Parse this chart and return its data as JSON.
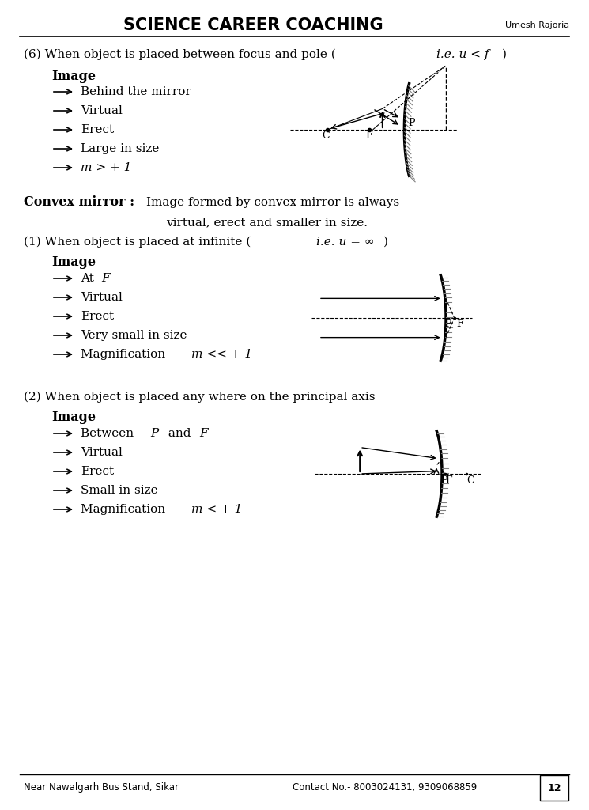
{
  "title": "SCIENCE CAREER COACHING",
  "title_right": "Umesh Rajoria",
  "footer_left": "Near Nawalgarh Bus Stand, Sikar",
  "footer_right": "Contact No.- 8003024131, 9309068859",
  "page_num": "12",
  "bg_color": "#ffffff",
  "text_color": "#000000",
  "section6_heading": "(6) When object is placed between focus and pole (",
  "section6_heading_italic": "i.e. u < f",
  "section6_heading_end": ")",
  "section6_image_label": "Image",
  "section6_bullets": [
    "Behind the mirror",
    "Virtual",
    "Erect",
    "Large in size",
    "m > + 1"
  ],
  "section6_bullet5_italic": "m",
  "convex_heading_bold": "Convex mirror : ",
  "convex_heading_rest": "Image formed by convex mirror is always\n                virtual, erect and smaller in size.",
  "section1_heading": "(1) When object is placed at infinite (",
  "section1_heading_italic": "i.e. u = ∞",
  "section1_heading_end": ")",
  "section1_image_label": "Image",
  "section1_bullets": [
    "At F",
    "Virtual",
    "Erect",
    "Very small in size",
    "Magnification m << + 1"
  ],
  "section2_heading": "(2) When object is placed any where on the principal axis",
  "section2_image_label": "Image",
  "section2_bullets": [
    "Between P and F",
    "Virtual",
    "Erect",
    "Small in size",
    "Magnification m < + 1"
  ]
}
